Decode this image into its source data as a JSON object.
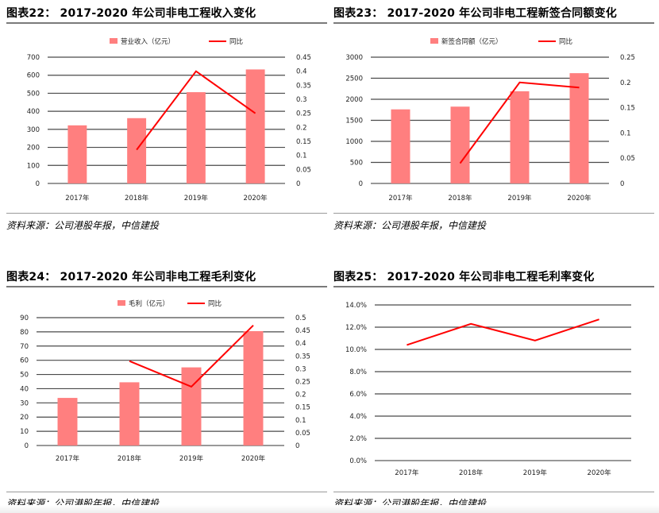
{
  "colors": {
    "bar": "#ff7f7f",
    "line": "#ff0000",
    "grid": "#4a4a4a",
    "axis": "#333333"
  },
  "panels": [
    {
      "title": "图表22： 2017-2020 年公司非电工程收入变化",
      "source": "资料来源：公司港股年报，中信建投"
    },
    {
      "title": "图表23： 2017-2020 年公司非电工程新签合同额变化",
      "source": "资料来源：公司港股年报，中信建投"
    },
    {
      "title": "图表24： 2017-2020 年公司非电工程毛利变化",
      "source": "资料来源：公司港股年报，中信建投"
    },
    {
      "title": "图表25： 2017-2020 年公司非电工程毛利率变化",
      "source": "资料来源：公司港股年报，中信建投"
    }
  ],
  "chart_data": [
    {
      "type": "bar",
      "categories": [
        "2017年",
        "2018年",
        "2019年",
        "2020年"
      ],
      "series": [
        {
          "name": "营业收入（亿元）",
          "type": "bar",
          "axis": "left",
          "values": [
            322,
            362,
            506,
            632
          ]
        },
        {
          "name": "同比",
          "type": "line",
          "axis": "right",
          "values": [
            null,
            0.12,
            0.4,
            0.25
          ]
        }
      ],
      "ylim": [
        0,
        700
      ],
      "yticks": [
        0,
        100,
        200,
        300,
        400,
        500,
        600,
        700
      ],
      "y2lim": [
        0,
        0.45
      ],
      "y2ticks": [
        0,
        0.05,
        0.1,
        0.15,
        0.2,
        0.25,
        0.3,
        0.35,
        0.4,
        0.45
      ],
      "legend": "top"
    },
    {
      "type": "bar",
      "categories": [
        "2017年",
        "2018年",
        "2019年",
        "2020年"
      ],
      "series": [
        {
          "name": "新签合同额（亿元）",
          "type": "bar",
          "axis": "left",
          "values": [
            1760,
            1825,
            2190,
            2620
          ]
        },
        {
          "name": "同比",
          "type": "line",
          "axis": "right",
          "values": [
            null,
            0.04,
            0.2,
            0.19
          ]
        }
      ],
      "ylim": [
        0,
        3000
      ],
      "yticks": [
        0,
        500,
        1000,
        1500,
        2000,
        2500,
        3000
      ],
      "y2lim": [
        0,
        0.25
      ],
      "y2ticks": [
        0,
        0.05,
        0.1,
        0.15,
        0.2,
        0.25
      ],
      "legend": "top"
    },
    {
      "type": "bar",
      "categories": [
        "2017年",
        "2018年",
        "2019年",
        "2020年"
      ],
      "series": [
        {
          "name": "毛利（亿元）",
          "type": "bar",
          "axis": "left",
          "values": [
            33.5,
            44.5,
            55,
            80.5
          ]
        },
        {
          "name": "同比",
          "type": "line",
          "axis": "right",
          "values": [
            null,
            0.33,
            0.23,
            0.47
          ]
        }
      ],
      "ylim": [
        0,
        90
      ],
      "yticks": [
        0,
        10,
        20,
        30,
        40,
        50,
        60,
        70,
        80,
        90
      ],
      "y2lim": [
        0,
        0.5
      ],
      "y2ticks": [
        0,
        0.05,
        0.1,
        0.15,
        0.2,
        0.25,
        0.3,
        0.35,
        0.4,
        0.45,
        0.5
      ],
      "legend": "top"
    },
    {
      "type": "line",
      "categories": [
        "2017年",
        "2018年",
        "2019年",
        "2020年"
      ],
      "series": [
        {
          "type": "line",
          "axis": "left",
          "values": [
            0.104,
            0.123,
            0.108,
            0.127
          ]
        }
      ],
      "ylim": [
        0,
        0.14
      ],
      "yticks": [
        0,
        0.02,
        0.04,
        0.06,
        0.08,
        0.1,
        0.12,
        0.14
      ],
      "ytick_labels": [
        "0.0%",
        "2.0%",
        "4.0%",
        "6.0%",
        "8.0%",
        "10.0%",
        "12.0%",
        "14.0%"
      ],
      "legend": "none"
    }
  ]
}
